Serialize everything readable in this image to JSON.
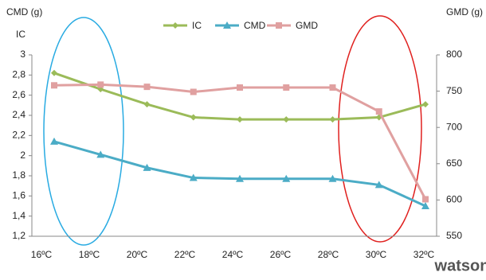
{
  "chart_data": {
    "type": "line",
    "y_axis_title": "CMD (g)",
    "y_axis_title_2": "IC",
    "y2_axis_title": "GMD (g)",
    "categories": [
      "16ºC",
      "18ºC",
      "20ºC",
      "22ºC",
      "24ºC",
      "26ºC",
      "28ºC",
      "30ºC",
      "32ºC"
    ],
    "series": [
      {
        "name": "IC",
        "color": "#9bbb59",
        "marker": "diamond",
        "values": [
          2.82,
          2.66,
          2.51,
          2.38,
          2.36,
          2.36,
          2.36,
          2.38,
          2.51
        ]
      },
      {
        "name": "CMD",
        "color": "#4bacc6",
        "marker": "triangle",
        "values": [
          2.14,
          2.01,
          1.88,
          1.78,
          1.77,
          1.77,
          1.77,
          1.71,
          1.5
        ]
      },
      {
        "name": "GMD",
        "color": "#e0a0a0",
        "marker": "square",
        "axis": "y2",
        "values": [
          758,
          759,
          756,
          749,
          755,
          755,
          755,
          722,
          601
        ]
      }
    ],
    "ylim": [
      1.2,
      3
    ],
    "yticks": [
      {
        "value": 1.2,
        "label": "1,2"
      },
      {
        "value": 1.4,
        "label": "1,4"
      },
      {
        "value": 1.6,
        "label": "1,6"
      },
      {
        "value": 1.8,
        "label": "1,8"
      },
      2,
      {
        "value": 2.2,
        "label": "2,2"
      },
      {
        "value": 2.4,
        "label": "2,4"
      },
      {
        "value": 2.6,
        "label": "2,6"
      },
      {
        "value": 2.8,
        "label": "2,8"
      },
      3
    ],
    "y2lim": [
      550,
      800
    ],
    "y2ticks": [
      550,
      600,
      650,
      700,
      750,
      800
    ],
    "grid": false,
    "legend": "top",
    "logo": "watson"
  }
}
